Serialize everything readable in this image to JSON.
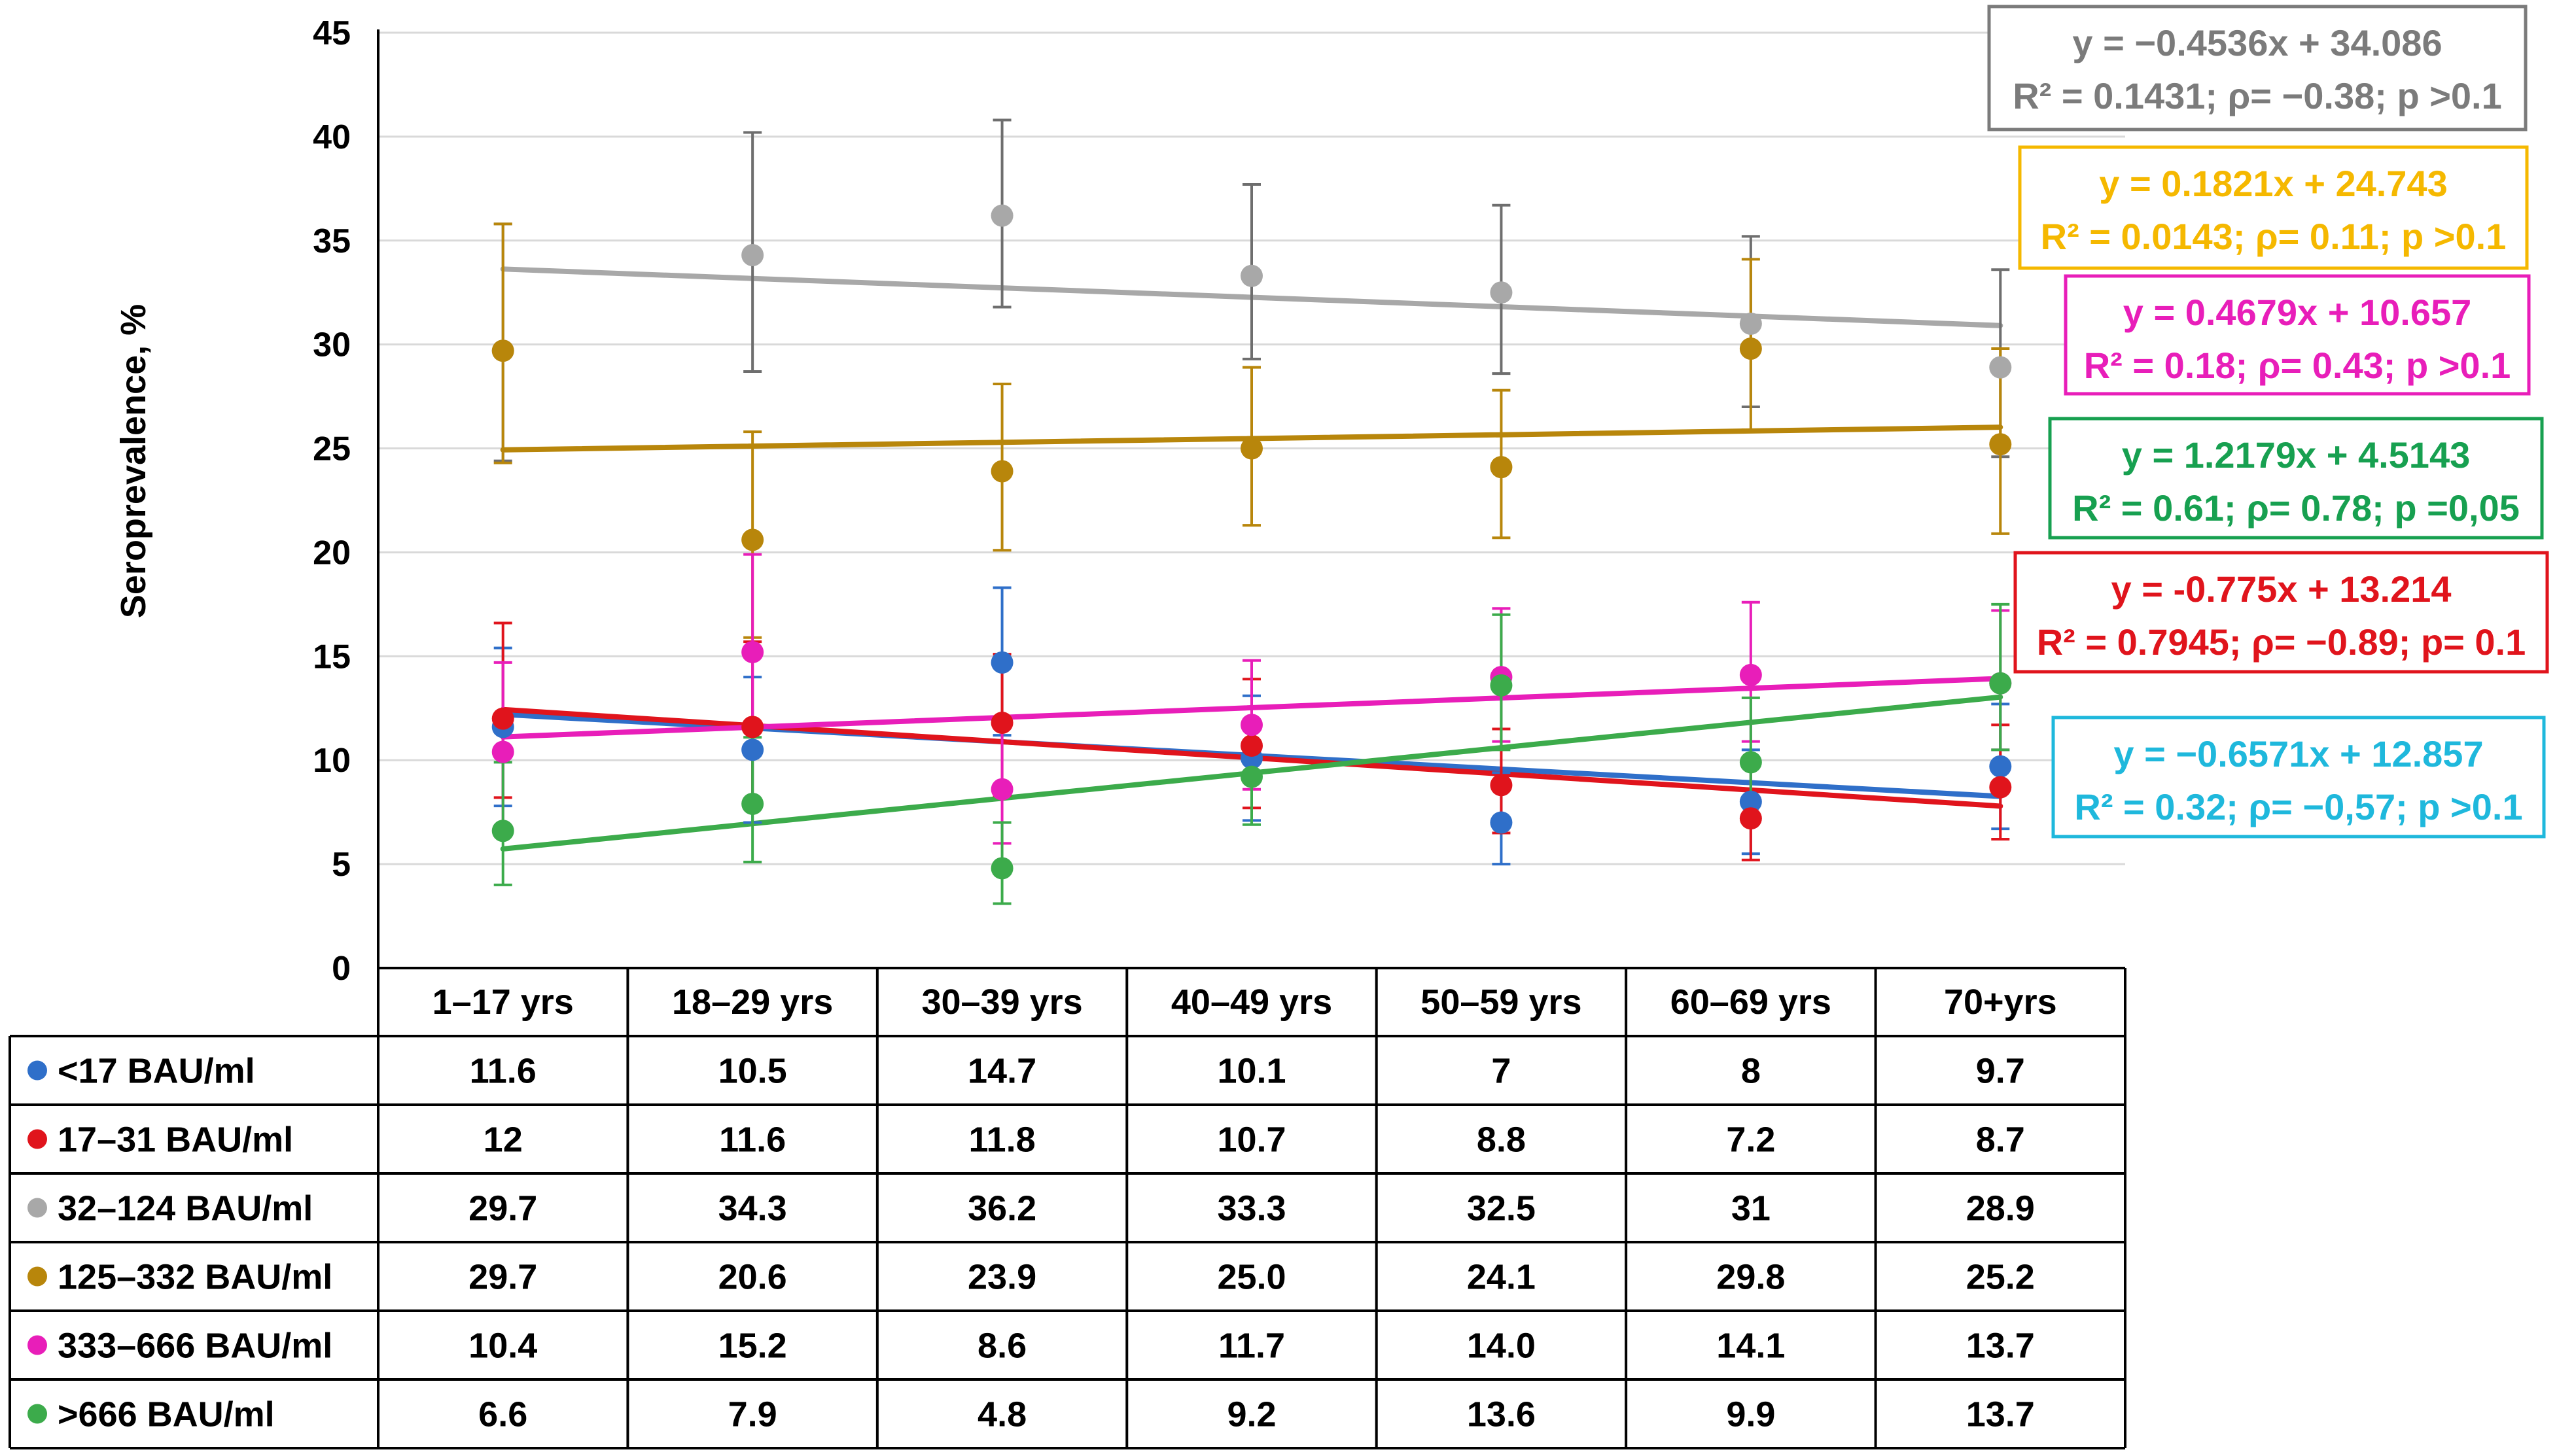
{
  "chart_data": {
    "type": "scatter",
    "ylabel": "Seroprevalence, %",
    "ylim": [
      0,
      45
    ],
    "yticks": [
      0,
      5,
      10,
      15,
      20,
      25,
      30,
      35,
      40,
      45
    ],
    "categories": [
      "1–17 yrs",
      "18–29 yrs",
      "30–39 yrs",
      "40–49 yrs",
      "50–59 yrs",
      "60–69 yrs",
      "70+yrs"
    ],
    "series": [
      {
        "name": "<17 BAU/ml",
        "color": "#2f6fc9",
        "values": [
          11.6,
          10.5,
          14.7,
          10.1,
          7,
          8,
          9.7
        ],
        "labels": [
          "11.6",
          "10.5",
          "14.7",
          "10.1",
          "7",
          "8",
          "9.7"
        ],
        "err_low": [
          3.8,
          3.5,
          3.5,
          3.0,
          2.0,
          2.5,
          3.0
        ],
        "err_high": [
          3.8,
          3.5,
          3.6,
          3.0,
          2.4,
          2.5,
          3.0
        ],
        "trend": [
          12.2,
          8.26
        ],
        "equation": "y = −0.6571x + 12.857",
        "stats": "R² = 0.32; ρ= −0,57; p >0.1",
        "box_color": "#1fb8dc"
      },
      {
        "name": "17–31 BAU/ml",
        "color": "#e0141c",
        "values": [
          12,
          11.6,
          11.8,
          10.7,
          8.8,
          7.2,
          8.7
        ],
        "labels": [
          "12",
          "11.6",
          "11.8",
          "10.7",
          "8.8",
          "7.2",
          "8.7"
        ],
        "err_low": [
          3.8,
          3.5,
          3.5,
          3.0,
          2.3,
          2.0,
          2.5
        ],
        "err_high": [
          4.6,
          4.1,
          3.3,
          3.2,
          2.7,
          2.6,
          3.0
        ],
        "trend": [
          12.44,
          7.79
        ],
        "equation": "y = -0.775x + 13.214",
        "stats": "R² = 0.7945; ρ= −0.89; p= 0.1",
        "box_color": "#e0141c"
      },
      {
        "name": "32–124 BAU/ml",
        "color": "#a8a8a8",
        "values": [
          29.7,
          34.3,
          36.2,
          33.3,
          32.5,
          31,
          28.9
        ],
        "labels": [
          "29.7",
          "34.3",
          "36.2",
          "33.3",
          "32.5",
          "31",
          "28.9"
        ],
        "err_low": [
          5.3,
          5.6,
          4.4,
          4.0,
          3.9,
          4.0,
          4.3
        ],
        "err_high": [
          6.1,
          5.9,
          4.6,
          4.4,
          4.2,
          4.2,
          4.7
        ],
        "trend": [
          33.63,
          30.91
        ],
        "equation": "y = −0.4536x + 34.086",
        "stats": "R² = 0.1431; ρ= −0.38; p >0.1",
        "box_color": "#7b7b7b"
      },
      {
        "name": "125–332 BAU/ml",
        "color": "#b8860b",
        "values": [
          29.7,
          20.6,
          23.9,
          25.0,
          24.1,
          29.8,
          25.2
        ],
        "labels": [
          "29.7",
          "20.6",
          "23.9",
          "25.0",
          "24.1",
          "29.8",
          "25.2"
        ],
        "err_low": [
          5.4,
          4.7,
          3.8,
          3.7,
          3.4,
          3.9,
          4.3
        ],
        "err_high": [
          6.1,
          5.2,
          4.2,
          3.9,
          3.7,
          4.3,
          4.6
        ],
        "trend": [
          24.93,
          26.02
        ],
        "equation": "y = 0.1821x + 24.743",
        "stats": "R² = 0.0143; ρ= 0.11; p >0.1",
        "box_color": "#f5b800"
      },
      {
        "name": "333–666 BAU/ml",
        "color": "#e81eb9",
        "values": [
          10.4,
          15.2,
          8.6,
          11.7,
          14.0,
          14.1,
          13.7
        ],
        "labels": [
          "10.4",
          "15.2",
          "8.6",
          "11.7",
          "14.0",
          "14.1",
          "13.7"
        ],
        "err_low": [
          4.0,
          3.8,
          2.6,
          3.1,
          3.1,
          3.2,
          3.2
        ],
        "err_high": [
          4.3,
          4.7,
          3.0,
          3.1,
          3.3,
          3.5,
          3.5
        ],
        "trend": [
          11.12,
          13.93
        ],
        "equation": "y = 0.4679x + 10.657",
        "stats": "R² = 0.18; ρ= 0.43; p >0.1",
        "box_color": "#e81eb9"
      },
      {
        "name": ">666 BAU/ml",
        "color": "#3cab4b",
        "values": [
          6.6,
          7.9,
          4.8,
          9.2,
          13.6,
          9.9,
          13.7
        ],
        "labels": [
          "6.6",
          "7.9",
          "4.8",
          "9.2",
          "13.6",
          "9.9",
          "13.7"
        ],
        "err_low": [
          2.6,
          2.8,
          1.7,
          2.3,
          3.1,
          2.7,
          3.2
        ],
        "err_high": [
          3.3,
          3.2,
          2.2,
          2.6,
          3.4,
          3.1,
          3.8
        ],
        "trend": [
          5.73,
          13.04
        ],
        "equation": "y = 1.2179x + 4.5143",
        "stats": "R² = 0.61; ρ= 0.78; p =0,05",
        "box_color": "#17a050"
      }
    ]
  }
}
